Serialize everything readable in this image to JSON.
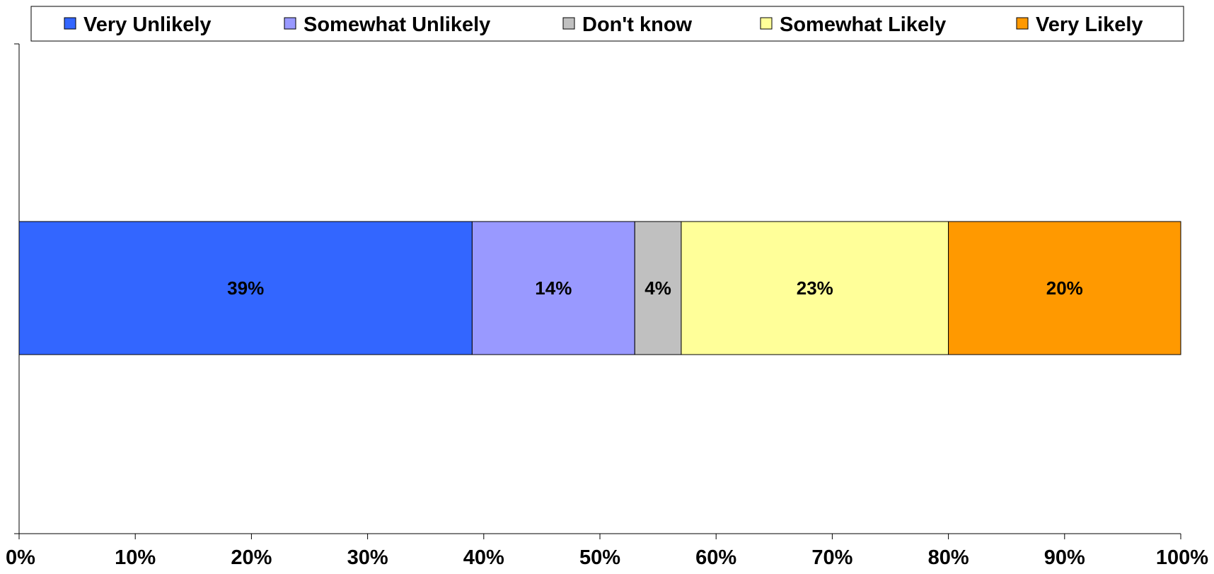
{
  "chart_data": {
    "type": "bar",
    "orientation": "horizontal",
    "stacked": true,
    "categories": [
      ""
    ],
    "series": [
      {
        "name": "Very Unlikely",
        "values": [
          39
        ],
        "label": "39%",
        "color": "#3366FF"
      },
      {
        "name": "Somewhat Unlikely",
        "values": [
          14
        ],
        "label": "14%",
        "color": "#9999FF"
      },
      {
        "name": "Don't know",
        "values": [
          4
        ],
        "label": "4%",
        "color": "#C0C0C0"
      },
      {
        "name": "Somewhat Likely",
        "values": [
          23
        ],
        "label": "23%",
        "color": "#FFFF99"
      },
      {
        "name": "Very Likely",
        "values": [
          20
        ],
        "label": "20%",
        "color": "#FF9900"
      }
    ],
    "xlim": [
      0,
      100
    ],
    "xticks": [
      {
        "value": 0,
        "label": "0%"
      },
      {
        "value": 10,
        "label": "10%"
      },
      {
        "value": 20,
        "label": "20%"
      },
      {
        "value": 30,
        "label": "30%"
      },
      {
        "value": 40,
        "label": "40%"
      },
      {
        "value": 50,
        "label": "50%"
      },
      {
        "value": 60,
        "label": "60%"
      },
      {
        "value": 70,
        "label": "70%"
      },
      {
        "value": 80,
        "label": "80%"
      },
      {
        "value": 90,
        "label": "90%"
      },
      {
        "value": 100,
        "label": "100%"
      }
    ],
    "legend": "top",
    "grid": false
  }
}
